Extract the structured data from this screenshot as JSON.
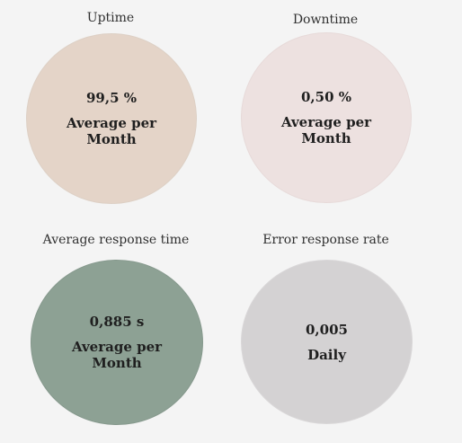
{
  "metrics": [
    {
      "title": "Uptime",
      "value": "99,5 %",
      "caption": "Average per Month",
      "color": "#e4d4c8"
    },
    {
      "title": "Downtime",
      "value": "0,50 %",
      "caption": "Average per Month",
      "color": "#ede1e0"
    },
    {
      "title": "Average response time",
      "value": "0,885 s",
      "caption": "Average per Month",
      "color": "#8da194"
    },
    {
      "title": "Error response rate",
      "value": "0,005",
      "caption": "Daily",
      "color": "#d4d2d3"
    }
  ]
}
